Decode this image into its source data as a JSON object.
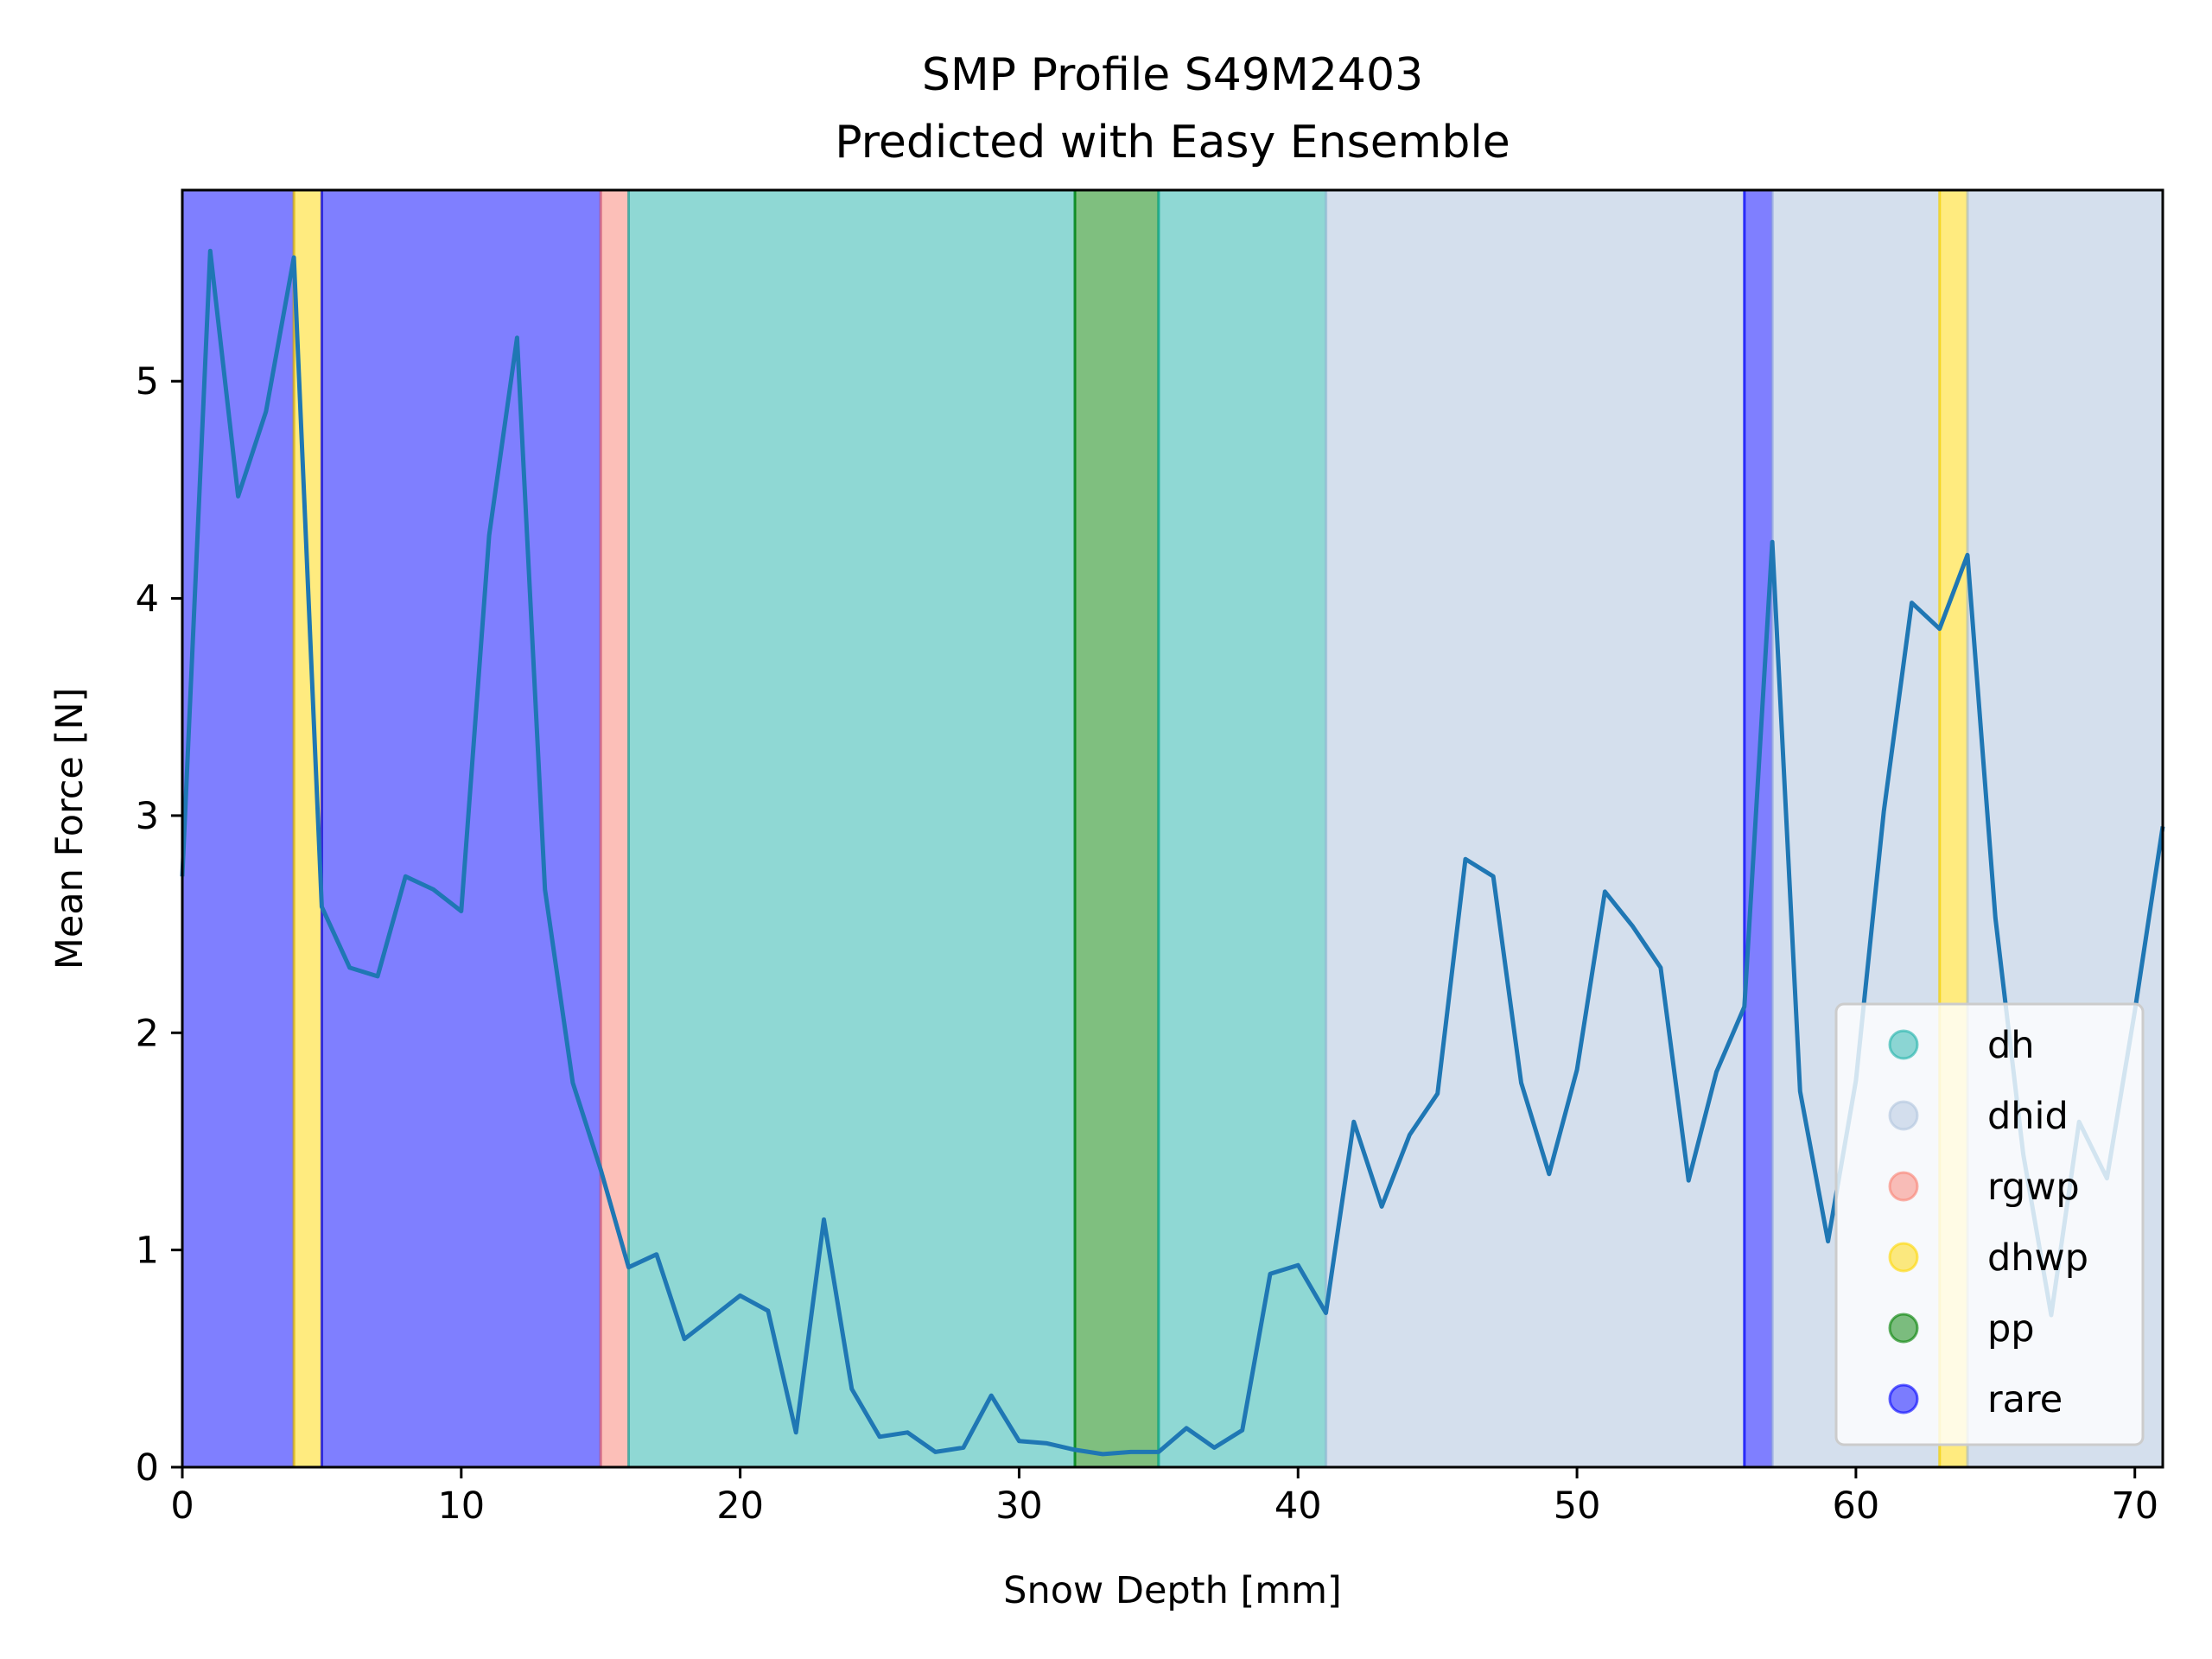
{
  "chart_data": {
    "type": "line",
    "title": "SMP Profile S49M2403",
    "subtitle": "Predicted with Easy Ensemble",
    "xlabel": "Snow Depth [mm]",
    "ylabel": "Mean Force [N]",
    "xlim": [
      0,
      71
    ],
    "ylim": [
      0,
      5.88
    ],
    "xticks": [
      0,
      10,
      20,
      30,
      40,
      50,
      60,
      70
    ],
    "yticks": [
      0,
      1,
      2,
      3,
      4,
      5
    ],
    "grid": false,
    "legend_position": "lower-right",
    "legend": [
      {
        "label": "dh",
        "color": "#20b2aa"
      },
      {
        "label": "dhid",
        "color": "#b0c4de"
      },
      {
        "label": "rgwp",
        "color": "#fa8072"
      },
      {
        "label": "dhwp",
        "color": "#ffd700"
      },
      {
        "label": "pp",
        "color": "#008000"
      },
      {
        "label": "rare",
        "color": "#0000ff"
      }
    ],
    "regions": [
      {
        "label": "rare",
        "x0": 0,
        "x1": 4
      },
      {
        "label": "dhwp",
        "x0": 4,
        "x1": 5
      },
      {
        "label": "rare",
        "x0": 5,
        "x1": 15
      },
      {
        "label": "rgwp",
        "x0": 15,
        "x1": 16
      },
      {
        "label": "dh",
        "x0": 16,
        "x1": 32
      },
      {
        "label": "pp",
        "x0": 32,
        "x1": 35
      },
      {
        "label": "dh",
        "x0": 35,
        "x1": 41
      },
      {
        "label": "dhid",
        "x0": 41,
        "x1": 56
      },
      {
        "label": "rare",
        "x0": 56,
        "x1": 57
      },
      {
        "label": "dhid",
        "x0": 57,
        "x1": 63
      },
      {
        "label": "dhwp",
        "x0": 63,
        "x1": 64
      },
      {
        "label": "dhid",
        "x0": 64,
        "x1": 71
      }
    ],
    "series": [
      {
        "color": "#1f77b4",
        "x": [
          0,
          1,
          2,
          3,
          4,
          5,
          6,
          7,
          8,
          9,
          10,
          11,
          12,
          13,
          14,
          15,
          16,
          17,
          18,
          19,
          20,
          21,
          22,
          23,
          24,
          25,
          26,
          27,
          28,
          29,
          30,
          31,
          32,
          33,
          34,
          35,
          36,
          37,
          38,
          39,
          40,
          41,
          42,
          43,
          44,
          45,
          46,
          47,
          48,
          49,
          50,
          51,
          52,
          53,
          54,
          55,
          56,
          57,
          58,
          59,
          60,
          61,
          62,
          63,
          64,
          65,
          66,
          67,
          68,
          69,
          70,
          71
        ],
        "values": [
          2.72,
          5.6,
          4.47,
          4.86,
          5.57,
          2.58,
          2.3,
          2.26,
          2.72,
          2.66,
          2.56,
          4.29,
          5.2,
          2.66,
          1.77,
          1.37,
          0.92,
          0.98,
          0.59,
          0.69,
          0.79,
          0.72,
          0.16,
          1.14,
          0.36,
          0.14,
          0.16,
          0.07,
          0.09,
          0.33,
          0.12,
          0.11,
          0.08,
          0.06,
          0.07,
          0.07,
          0.18,
          0.09,
          0.17,
          0.89,
          0.93,
          0.71,
          1.59,
          1.2,
          1.53,
          1.72,
          2.8,
          2.72,
          1.77,
          1.35,
          1.83,
          2.65,
          2.49,
          2.3,
          1.32,
          1.82,
          2.12,
          4.26,
          1.73,
          1.04,
          1.78,
          3.02,
          3.98,
          3.86,
          4.2,
          2.53,
          1.44,
          0.7,
          1.59,
          1.33,
          2.1,
          2.95
        ]
      }
    ]
  }
}
